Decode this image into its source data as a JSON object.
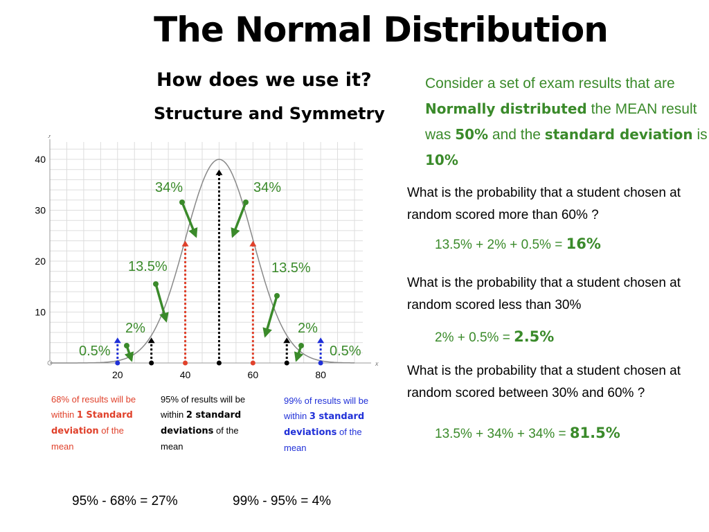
{
  "title": "The Normal Distribution",
  "subtitle1": "How does we use it?",
  "subtitle2": "Structure and Symmetry",
  "intro": {
    "p1": "Consider a set of exam results that are",
    "bold1": "Normally distributed",
    "p2": " the MEAN result was ",
    "bold2": "50%",
    "p3": " and the ",
    "bold3": "standard deviation",
    "p4": " is ",
    "bold4": "10%"
  },
  "questions": [
    {
      "question": "What is the probability that a student chosen at random scored  more than 60% ?",
      "answer_expr": "13.5% + 2% + 0.5% = ",
      "answer_result": "16%"
    },
    {
      "question": "What is the probability that a student chosen at random scored less than 30%",
      "answer_expr": "2% + 0.5% = ",
      "answer_result": "2.5%"
    },
    {
      "question": "What is the probability that a student chosen at random scored between 30% and 60% ?",
      "answer_expr": "13.5% + 34% + 34% = ",
      "answer_result": "81.5%"
    }
  ],
  "notes": {
    "red": {
      "t1": "68% of results will be within ",
      "b": "1 Standard deviation",
      "t2": " of the mean"
    },
    "black": {
      "t1": "95% of results will be within ",
      "b": "2 standard deviations",
      "t2": " of the mean"
    },
    "blue": {
      "t1": "99% of results will be within ",
      "b": "3 standard deviations",
      "t2": " of the mean"
    }
  },
  "bottom": {
    "left": "95% - 68% = 27%",
    "right": "99% - 95% = 4%"
  },
  "colors": {
    "green": "#3a8a2a",
    "red": "#e0412b",
    "blue": "#2030d8",
    "curve": "#888888"
  },
  "chart_data": {
    "type": "line",
    "mean": 50,
    "sd": 10,
    "peak": 40,
    "xlim": [
      0,
      90
    ],
    "ylim": [
      0,
      42
    ],
    "x_axis_letter": "x",
    "y_axis_letter": "y",
    "x_ticks": [
      "20",
      "40",
      "60",
      "80"
    ],
    "y_ticks": [
      "10",
      "20",
      "30",
      "40"
    ],
    "grid": true,
    "percent_labels": [
      "0.5%",
      "2%",
      "13.5%",
      "34%",
      "34%",
      "13.5%",
      "2%",
      "0.5%"
    ],
    "dotted_lines": [
      {
        "x": 50,
        "color": "black"
      },
      {
        "x": 40,
        "color": "red"
      },
      {
        "x": 60,
        "color": "red"
      },
      {
        "x": 30,
        "color": "black"
      },
      {
        "x": 70,
        "color": "black"
      },
      {
        "x": 20,
        "color": "blue"
      },
      {
        "x": 80,
        "color": "blue"
      }
    ]
  }
}
